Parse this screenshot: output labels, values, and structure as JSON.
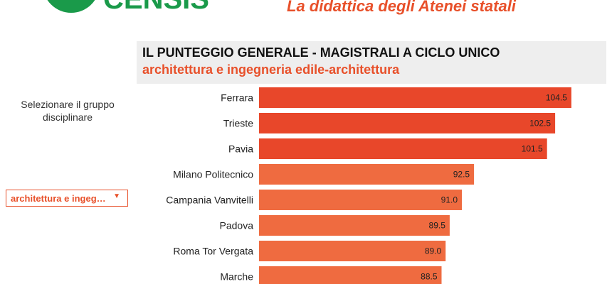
{
  "header": {
    "logo_text": "CENSIS",
    "subtitle": "La didattica degli Atenei statali"
  },
  "filter": {
    "label": "Selezionare il gruppo disciplinare",
    "selected": "architettura e ingeg…",
    "arrow_icon": "triangle-down-icon"
  },
  "colors": {
    "accent": "#e8502a",
    "bar_top": "#e8472a",
    "bar_other": "#ef6b40",
    "logo_green": "#1a9a4a"
  },
  "chart_data": {
    "type": "bar",
    "orientation": "horizontal",
    "title": "IL PUNTEGGIO GENERALE - MAGISTRALI A CICLO UNICO",
    "subtitle": "architettura e ingegneria edile-architettura",
    "categories": [
      "Ferrara",
      "Trieste",
      "Pavia",
      "Milano Politecnico",
      "Campania Vanvitelli",
      "Padova",
      "Roma Tor Vergata",
      "Marche"
    ],
    "values": [
      104.5,
      102.5,
      101.5,
      92.5,
      91.0,
      89.5,
      89.0,
      88.5
    ],
    "value_labels": [
      "104.5",
      "102.5",
      "101.5",
      "92.5",
      "91.0",
      "89.5",
      "89.0",
      "88.5"
    ],
    "highlight_top": 3,
    "xlim": [
      66,
      106
    ],
    "grid": false,
    "legend": "none"
  }
}
